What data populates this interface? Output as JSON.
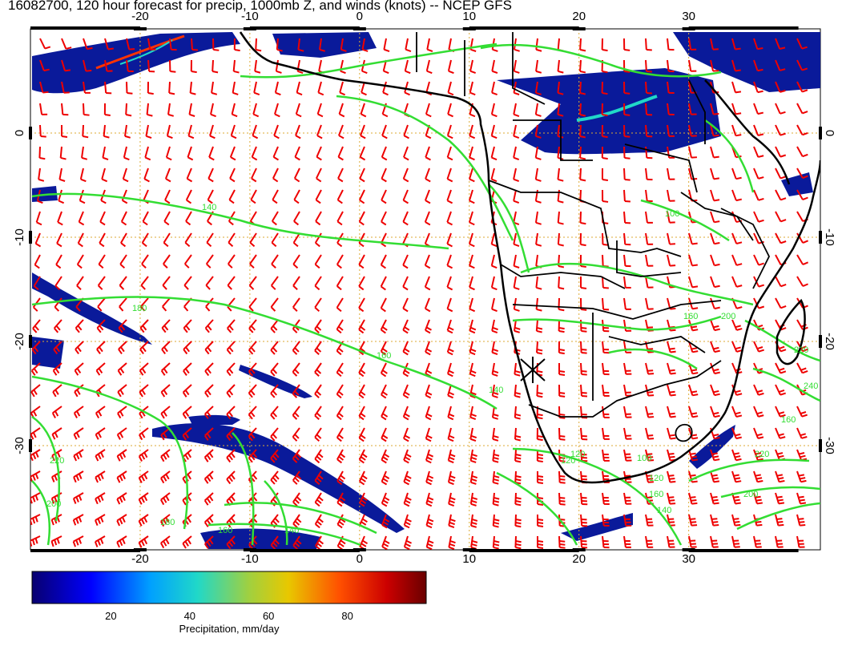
{
  "title": "16082700, 120 hour forecast for precip, 1000mb Z, and winds (knots) -- NCEP GFS",
  "map": {
    "lon_range": [
      -30,
      42
    ],
    "lat_range": [
      -40,
      10
    ],
    "lon_ticks": [
      "-20",
      "-10",
      "0",
      "10",
      "20",
      "30"
    ],
    "lat_ticks": [
      "0",
      "-10",
      "-20",
      "-30"
    ],
    "colors": {
      "coast": "#000000",
      "contour": "#33dd33",
      "wind": "#ee0000",
      "grid": "#ddaa33",
      "precip": "#0a1a9a"
    },
    "contour_labels": [
      "140",
      "180",
      "160",
      "140",
      "220",
      "200",
      "180",
      "160",
      "140",
      "120",
      "100",
      "120",
      "100",
      "160",
      "200",
      "220",
      "240",
      "160",
      "220",
      "200",
      "160",
      "140",
      "120"
    ],
    "marker": "station-cross-icon"
  },
  "colorbar": {
    "ticks": [
      "20",
      "40",
      "60",
      "80"
    ],
    "label": "Precipitation, mm/day",
    "range": [
      0,
      100
    ],
    "colors": [
      "#00007f",
      "#0000ff",
      "#00bfff",
      "#40e0d0",
      "#ffd700",
      "#ff4500",
      "#cc0000",
      "#7f0000"
    ]
  }
}
